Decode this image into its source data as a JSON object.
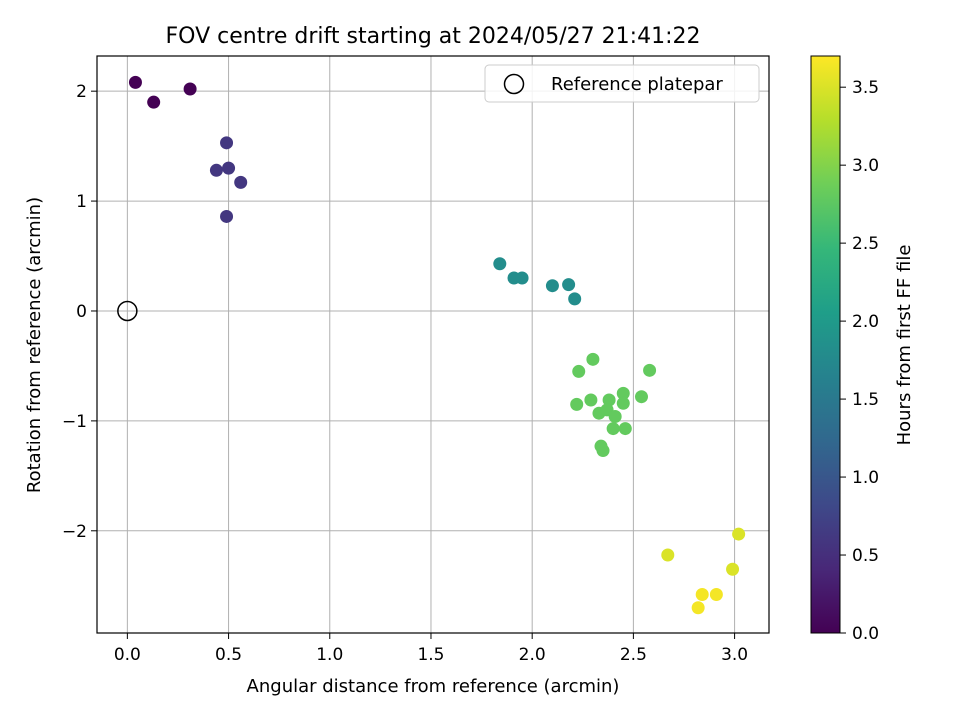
{
  "chart_data": {
    "type": "scatter",
    "title": "FOV centre drift starting at 2024/05/27 21:41:22",
    "xlabel": "Angular distance from reference (arcmin)",
    "ylabel": "Rotation from reference (arcmin)",
    "xlim": [
      -0.15,
      3.17
    ],
    "ylim": [
      -2.93,
      2.32
    ],
    "grid": true,
    "x_ticks": [
      0.0,
      0.5,
      1.0,
      1.5,
      2.0,
      2.5,
      3.0
    ],
    "x_tick_labels": [
      "0.0",
      "0.5",
      "1.0",
      "1.5",
      "2.0",
      "2.5",
      "3.0"
    ],
    "y_ticks": [
      -2,
      -1,
      0,
      1,
      2
    ],
    "y_tick_labels": [
      "−2",
      "−1",
      "0",
      "1",
      "2"
    ],
    "legend": {
      "placement": "top-right",
      "entries": [
        {
          "label": "Reference platepar",
          "marker": "open-circle"
        }
      ]
    },
    "reference_point": {
      "x": 0,
      "y": 0
    },
    "colorbar": {
      "label": "Hours from first FF file",
      "range": [
        0.0,
        3.7
      ],
      "ticks": [
        0.0,
        0.5,
        1.0,
        1.5,
        2.0,
        2.5,
        3.0,
        3.5
      ],
      "tick_labels": [
        "0.0",
        "0.5",
        "1.0",
        "1.5",
        "2.0",
        "2.5",
        "3.0",
        "3.5"
      ],
      "colormap": "viridis",
      "stops": [
        "#440154",
        "#482878",
        "#3e4989",
        "#31688e",
        "#26828e",
        "#1f9e89",
        "#35b779",
        "#6ece58",
        "#b5de2b",
        "#fde725"
      ]
    },
    "points": [
      {
        "x": 0.04,
        "y": 2.08,
        "hours": 0.0
      },
      {
        "x": 0.13,
        "y": 1.9,
        "hours": 0.0
      },
      {
        "x": 0.31,
        "y": 2.02,
        "hours": 0.0
      },
      {
        "x": 0.49,
        "y": 1.53,
        "hours": 0.6
      },
      {
        "x": 0.44,
        "y": 1.28,
        "hours": 0.6
      },
      {
        "x": 0.5,
        "y": 1.3,
        "hours": 0.6
      },
      {
        "x": 0.56,
        "y": 1.17,
        "hours": 0.6
      },
      {
        "x": 0.49,
        "y": 0.86,
        "hours": 0.6
      },
      {
        "x": 1.84,
        "y": 0.43,
        "hours": 1.8
      },
      {
        "x": 1.91,
        "y": 0.3,
        "hours": 1.8
      },
      {
        "x": 1.95,
        "y": 0.3,
        "hours": 1.8
      },
      {
        "x": 2.1,
        "y": 0.23,
        "hours": 1.8
      },
      {
        "x": 2.18,
        "y": 0.24,
        "hours": 1.8
      },
      {
        "x": 2.21,
        "y": 0.11,
        "hours": 1.8
      },
      {
        "x": 2.3,
        "y": -0.44,
        "hours": 2.8
      },
      {
        "x": 2.58,
        "y": -0.54,
        "hours": 2.8
      },
      {
        "x": 2.23,
        "y": -0.55,
        "hours": 2.8
      },
      {
        "x": 2.22,
        "y": -0.85,
        "hours": 2.8
      },
      {
        "x": 2.29,
        "y": -0.81,
        "hours": 2.8
      },
      {
        "x": 2.33,
        "y": -0.93,
        "hours": 2.8
      },
      {
        "x": 2.38,
        "y": -0.81,
        "hours": 2.8
      },
      {
        "x": 2.37,
        "y": -0.9,
        "hours": 2.8
      },
      {
        "x": 2.45,
        "y": -0.75,
        "hours": 2.8
      },
      {
        "x": 2.45,
        "y": -0.84,
        "hours": 2.8
      },
      {
        "x": 2.54,
        "y": -0.78,
        "hours": 2.8
      },
      {
        "x": 2.41,
        "y": -0.96,
        "hours": 2.8
      },
      {
        "x": 2.4,
        "y": -1.07,
        "hours": 2.8
      },
      {
        "x": 2.46,
        "y": -1.07,
        "hours": 2.8
      },
      {
        "x": 2.34,
        "y": -1.23,
        "hours": 2.8
      },
      {
        "x": 2.35,
        "y": -1.27,
        "hours": 2.8
      },
      {
        "x": 2.67,
        "y": -2.22,
        "hours": 3.5
      },
      {
        "x": 3.02,
        "y": -2.03,
        "hours": 3.5
      },
      {
        "x": 2.99,
        "y": -2.35,
        "hours": 3.5
      },
      {
        "x": 2.84,
        "y": -2.58,
        "hours": 3.65
      },
      {
        "x": 2.91,
        "y": -2.58,
        "hours": 3.65
      },
      {
        "x": 2.82,
        "y": -2.7,
        "hours": 3.65
      }
    ]
  }
}
